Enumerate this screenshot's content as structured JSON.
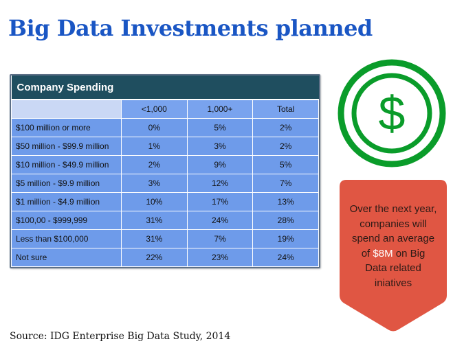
{
  "title": "Big Data Investments planned",
  "source": "Source: IDG Enterprise Big Data Study, 2014",
  "colors": {
    "title": "#1a56c4",
    "header": "#1f4e5f",
    "cells": "#6e9bea",
    "coin": "#0a9c2a",
    "callout": "#e05643",
    "highlight": "#ffffff"
  },
  "icons": {
    "coin": "dollar-coin-icon"
  },
  "callout": {
    "before": "Over the next year, companies will spend an average of",
    "highlight": "$8M",
    "after": "on Big Data related iniatives"
  },
  "coin_symbol": "$",
  "chart_data": {
    "type": "table",
    "title": "Company Spending",
    "columns": [
      "<1,000",
      "1,000+",
      "Total"
    ],
    "rows": [
      {
        "label": "$100 million or more",
        "values": [
          "0%",
          "5%",
          "2%"
        ]
      },
      {
        "label": "$50 million - $99.9 million",
        "values": [
          "1%",
          "3%",
          "2%"
        ]
      },
      {
        "label": "$10 million - $49.9 million",
        "values": [
          "2%",
          "9%",
          "5%"
        ]
      },
      {
        "label": "$5 million - $9.9 million",
        "values": [
          "3%",
          "12%",
          "7%"
        ]
      },
      {
        "label": "$1 million - $4.9 million",
        "values": [
          "10%",
          "17%",
          "13%"
        ]
      },
      {
        "label": "$100,00 - $999,999",
        "values": [
          "31%",
          "24%",
          "28%"
        ]
      },
      {
        "label": "Less than $100,000",
        "values": [
          "31%",
          "7%",
          "19%"
        ]
      },
      {
        "label": "Not sure",
        "values": [
          "22%",
          "23%",
          "24%"
        ]
      }
    ]
  }
}
